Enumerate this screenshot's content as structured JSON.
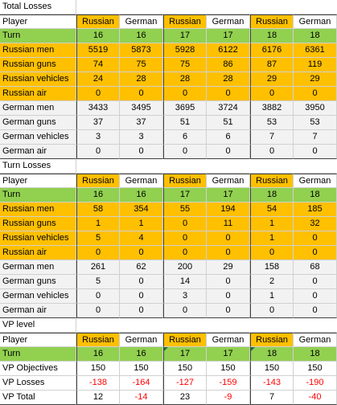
{
  "colors": {
    "orange": "#ffc000",
    "green": "#92d050",
    "grey": "#f2f2f2",
    "negative": "#ff0000"
  },
  "total_losses": {
    "title": "Total Losses",
    "header": [
      "Player",
      "Russian",
      "German",
      "Russian",
      "German",
      "Russian",
      "German"
    ],
    "rows": [
      {
        "label": "Turn",
        "values": [
          "16",
          "16",
          "17",
          "17",
          "18",
          "18"
        ]
      },
      {
        "label": "Russian men",
        "values": [
          "5519",
          "5873",
          "5928",
          "6122",
          "6176",
          "6361"
        ]
      },
      {
        "label": "Russian guns",
        "values": [
          "74",
          "75",
          "75",
          "86",
          "87",
          "119"
        ]
      },
      {
        "label": "Russian vehicles",
        "values": [
          "24",
          "28",
          "28",
          "28",
          "29",
          "29"
        ]
      },
      {
        "label": "Russian air",
        "values": [
          "0",
          "0",
          "0",
          "0",
          "0",
          "0"
        ]
      },
      {
        "label": "German men",
        "values": [
          "3433",
          "3495",
          "3695",
          "3724",
          "3882",
          "3950"
        ]
      },
      {
        "label": "German guns",
        "values": [
          "37",
          "37",
          "51",
          "51",
          "53",
          "53"
        ]
      },
      {
        "label": "German vehicles",
        "values": [
          "3",
          "3",
          "6",
          "6",
          "7",
          "7"
        ]
      },
      {
        "label": "German air",
        "values": [
          "0",
          "0",
          "0",
          "0",
          "0",
          "0"
        ]
      }
    ]
  },
  "turn_losses": {
    "title": "Turn Losses",
    "header": [
      "Player",
      "Russian",
      "German",
      "Russian",
      "German",
      "Russian",
      "German"
    ],
    "rows": [
      {
        "label": "Turn",
        "values": [
          "16",
          "16",
          "17",
          "17",
          "18",
          "18"
        ]
      },
      {
        "label": "Russian men",
        "values": [
          "58",
          "354",
          "55",
          "194",
          "54",
          "185"
        ]
      },
      {
        "label": "Russian guns",
        "values": [
          "1",
          "1",
          "0",
          "11",
          "1",
          "32"
        ]
      },
      {
        "label": "Russian vehicles",
        "values": [
          "5",
          "4",
          "0",
          "0",
          "1",
          "0"
        ]
      },
      {
        "label": "Russian air",
        "values": [
          "0",
          "0",
          "0",
          "0",
          "0",
          "0"
        ]
      },
      {
        "label": "German men",
        "values": [
          "261",
          "62",
          "200",
          "29",
          "158",
          "68"
        ]
      },
      {
        "label": "German guns",
        "values": [
          "5",
          "0",
          "14",
          "0",
          "2",
          "0"
        ]
      },
      {
        "label": "German vehicles",
        "values": [
          "0",
          "0",
          "3",
          "0",
          "1",
          "0"
        ]
      },
      {
        "label": "German air",
        "values": [
          "0",
          "0",
          "0",
          "0",
          "0",
          "0"
        ]
      }
    ]
  },
  "vp_level": {
    "title": "VP level",
    "header": [
      "Player",
      "Russian",
      "German",
      "Russian",
      "German",
      "Russian",
      "German"
    ],
    "rows": [
      {
        "label": "Turn",
        "values": [
          "16",
          "16",
          "17",
          "17",
          "18",
          "18"
        ]
      },
      {
        "label": "VP Objectives",
        "values": [
          "150",
          "150",
          "150",
          "150",
          "150",
          "150"
        ]
      },
      {
        "label": "VP Losses",
        "values": [
          "-138",
          "-164",
          "-127",
          "-159",
          "-143",
          "-190"
        ]
      },
      {
        "label": "VP Total",
        "values": [
          "12",
          "-14",
          "23",
          "-9",
          "7",
          "-40"
        ]
      }
    ]
  }
}
